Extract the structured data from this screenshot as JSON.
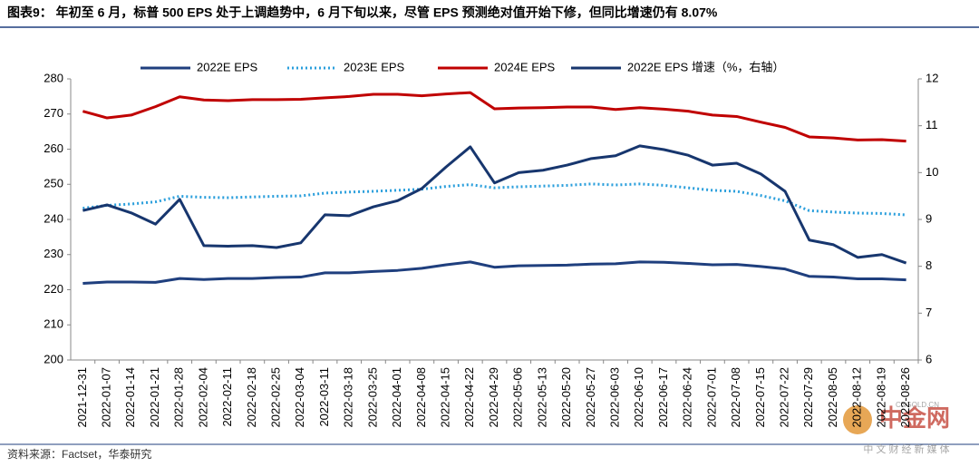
{
  "chart_data": {
    "type": "line",
    "title": "图表9：  年初至 6 月，标普 500 EPS 处于上调趋势中，6 月下旬以来，尽管 EPS 预测绝对值开始下修，但同比增速仍有 8.07%",
    "source": "资料来源：Factset，华泰研究",
    "watermark": "中金网",
    "watermark_sub": "中 文 财 经 新 媒 体",
    "watermark_url": "CNGOLD.CN",
    "categories": [
      "2021-12-31",
      "2022-01-07",
      "2022-01-14",
      "2022-01-21",
      "2022-01-28",
      "2022-02-04",
      "2022-02-11",
      "2022-02-18",
      "2022-02-25",
      "2022-03-04",
      "2022-03-11",
      "2022-03-18",
      "2022-03-25",
      "2022-04-01",
      "2022-04-08",
      "2022-04-15",
      "2022-04-22",
      "2022-04-29",
      "2022-05-06",
      "2022-05-13",
      "2022-05-20",
      "2022-05-27",
      "2022-06-03",
      "2022-06-10",
      "2022-06-17",
      "2022-06-24",
      "2022-07-01",
      "2022-07-08",
      "2022-07-15",
      "2022-07-22",
      "2022-07-29",
      "2022-08-05",
      "2022-08-12",
      "2022-08-19",
      "2022-08-26"
    ],
    "series": [
      {
        "name": "2022E EPS",
        "color": "#1f3f7e",
        "style": "solid",
        "values": [
          221.8,
          222.2,
          222.2,
          222.1,
          223.2,
          222.9,
          223.2,
          223.2,
          223.5,
          223.6,
          224.8,
          224.8,
          225.2,
          225.5,
          226.1,
          227.1,
          227.9,
          226.4,
          226.8,
          226.9,
          227.0,
          227.3,
          227.4,
          227.9,
          227.8,
          227.5,
          227.1,
          227.2,
          226.6,
          225.9,
          223.8,
          223.6,
          223.1,
          223.1,
          222.8
        ]
      },
      {
        "name": "2023E EPS",
        "color": "#2b9fdc",
        "style": "dotted",
        "values": [
          243.2,
          244.0,
          244.4,
          245.0,
          246.6,
          246.3,
          246.2,
          246.4,
          246.6,
          246.7,
          247.5,
          247.8,
          248.0,
          248.3,
          248.6,
          249.4,
          249.9,
          249.0,
          249.3,
          249.5,
          249.7,
          250.1,
          249.8,
          250.1,
          249.7,
          249.0,
          248.3,
          248.0,
          246.8,
          245.3,
          242.5,
          242.1,
          241.8,
          241.7,
          241.3
        ]
      },
      {
        "name": "2024E EPS",
        "color": "#c00000",
        "style": "solid",
        "values": [
          270.8,
          268.9,
          269.7,
          272.1,
          274.9,
          274.0,
          273.8,
          274.1,
          274.1,
          274.2,
          274.6,
          275.0,
          275.6,
          275.6,
          275.2,
          275.7,
          276.1,
          271.5,
          271.7,
          271.8,
          272.0,
          272.0,
          271.3,
          271.8,
          271.4,
          270.8,
          269.7,
          269.3,
          267.7,
          266.2,
          263.5,
          263.2,
          262.6,
          262.7,
          262.3
        ]
      },
      {
        "name": "2022E EPS 增速（%，右轴）",
        "color": "#17366e",
        "style": "solid",
        "axis": "y2",
        "values": [
          9.19,
          9.31,
          9.14,
          8.9,
          9.43,
          8.44,
          8.43,
          8.44,
          8.4,
          8.5,
          9.1,
          9.08,
          9.27,
          9.4,
          9.66,
          10.12,
          10.55,
          9.78,
          10.0,
          10.05,
          10.16,
          10.3,
          10.36,
          10.57,
          10.49,
          10.37,
          10.16,
          10.2,
          9.97,
          9.6,
          8.56,
          8.46,
          8.19,
          8.25,
          8.07
        ]
      }
    ],
    "ylim": [
      200,
      280
    ],
    "yticks": [
      200,
      210,
      220,
      230,
      240,
      250,
      260,
      270,
      280
    ],
    "y2lim": [
      6,
      12
    ],
    "y2ticks": [
      6,
      7,
      8,
      9,
      10,
      11,
      12
    ],
    "legend": "top"
  }
}
